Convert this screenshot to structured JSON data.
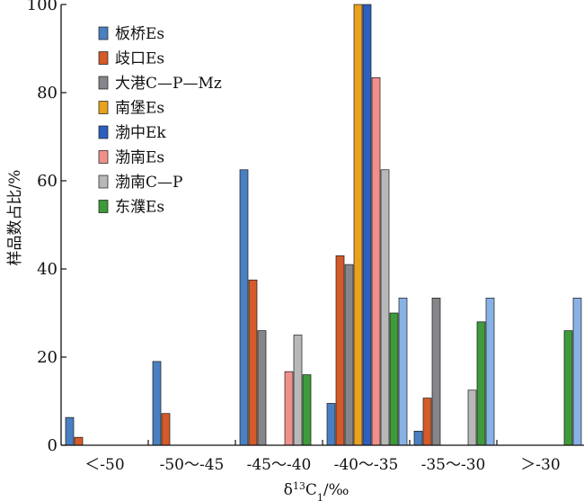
{
  "chart_data": {
    "type": "bar",
    "xlabel": "δ¹³C₁/‰",
    "ylabel": "样品数占比/%",
    "ylim": [
      0,
      100
    ],
    "yticks": [
      0,
      20,
      40,
      60,
      80,
      100
    ],
    "categories": [
      "＜-50",
      "-50～-45",
      "-45～-40",
      "-40～-35",
      "-35～-30",
      "＞-30"
    ],
    "legend_position": "top-left",
    "series": [
      {
        "name": "板桥Es",
        "color": "#4a7fc1",
        "values": [
          6.3,
          19,
          62.5,
          9.5,
          3.2,
          0
        ]
      },
      {
        "name": "歧口Es",
        "color": "#d45a2a",
        "values": [
          1.8,
          7.2,
          37.5,
          43,
          10.7,
          0
        ]
      },
      {
        "name": "大港C—P—Mz",
        "color": "#86868a",
        "values": [
          0,
          0,
          26,
          41,
          33.4,
          0
        ]
      },
      {
        "name": "南堡Es",
        "color": "#e8a21e",
        "values": [
          0,
          0,
          0,
          100,
          0,
          0
        ]
      },
      {
        "name": "渤中Ek",
        "color": "#2e5fbf",
        "values": [
          0,
          0,
          0,
          100,
          0,
          0
        ]
      },
      {
        "name": "渤南Es",
        "color": "#f0908a",
        "values": [
          0,
          0,
          16.7,
          83.4,
          0,
          0
        ]
      },
      {
        "name": "渤南C—P",
        "color": "#b8b8b8",
        "values": [
          0,
          0,
          25,
          62.5,
          12.5,
          0
        ]
      },
      {
        "name": "东濮Es",
        "color": "#3e9a3a",
        "values": [
          0,
          0,
          16,
          30,
          28,
          26
        ]
      },
      {
        "name": "",
        "color": "#88b2e6",
        "values": [
          0,
          0,
          0,
          33.4,
          33.4,
          33.4
        ]
      }
    ]
  }
}
